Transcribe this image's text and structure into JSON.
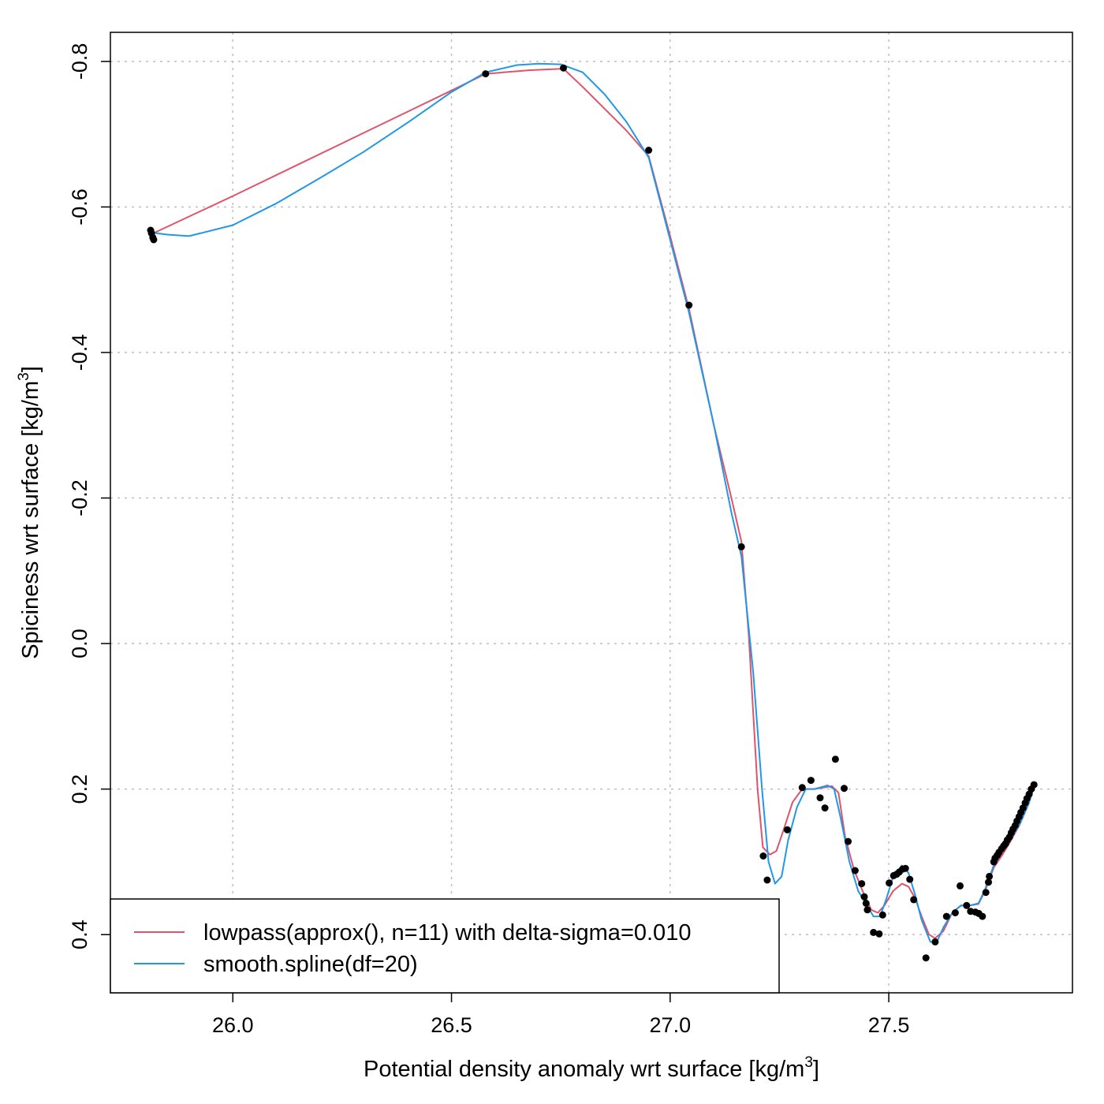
{
  "chart_data": {
    "type": "scatter",
    "xlabel": {
      "prefix": "Potential density anomaly wrt surface [kg/m",
      "sup": "3",
      "suffix": "]"
    },
    "ylabel": {
      "prefix": "Spiciness wrt surface [kg/m",
      "sup": "3",
      "suffix": "]"
    },
    "xlim": [
      25.72,
      27.92
    ],
    "ylim": [
      0.48,
      -0.84
    ],
    "y_reversed": true,
    "grid": true,
    "x_ticks": [
      {
        "value": 26.0,
        "label": "26.0"
      },
      {
        "value": 26.5,
        "label": "26.5"
      },
      {
        "value": 27.0,
        "label": "27.0"
      },
      {
        "value": 27.5,
        "label": "27.5"
      }
    ],
    "y_ticks": [
      {
        "value": -0.8,
        "label": "-0.8"
      },
      {
        "value": -0.6,
        "label": "-0.6"
      },
      {
        "value": -0.4,
        "label": "-0.4"
      },
      {
        "value": -0.2,
        "label": "-0.2"
      },
      {
        "value": 0.0,
        "label": "0.0"
      },
      {
        "value": 0.2,
        "label": "0.2"
      },
      {
        "value": 0.4,
        "label": "0.4"
      }
    ],
    "legend_position": "bottom-left",
    "colors": {
      "points": "#000000",
      "lowpass": "#DF536B",
      "spline": "#2297E6",
      "grid": "#BEBEBE"
    },
    "points": [
      [
        25.812,
        -0.568
      ],
      [
        25.814,
        -0.564
      ],
      [
        25.817,
        -0.558
      ],
      [
        25.819,
        -0.555
      ],
      [
        26.578,
        -0.783
      ],
      [
        26.756,
        -0.791
      ],
      [
        26.951,
        -0.678
      ],
      [
        27.043,
        -0.465
      ],
      [
        27.163,
        -0.133
      ],
      [
        27.213,
        0.292
      ],
      [
        27.222,
        0.325
      ],
      [
        27.268,
        0.256
      ],
      [
        27.302,
        0.198
      ],
      [
        27.322,
        0.188
      ],
      [
        27.343,
        0.212
      ],
      [
        27.354,
        0.226
      ],
      [
        27.378,
        0.159
      ],
      [
        27.398,
        0.199
      ],
      [
        27.407,
        0.272
      ],
      [
        27.423,
        0.312
      ],
      [
        27.438,
        0.33
      ],
      [
        27.444,
        0.348
      ],
      [
        27.448,
        0.357
      ],
      [
        27.451,
        0.366
      ],
      [
        27.465,
        0.397
      ],
      [
        27.478,
        0.399
      ],
      [
        27.486,
        0.373
      ],
      [
        27.501,
        0.329
      ],
      [
        27.511,
        0.319
      ],
      [
        27.518,
        0.317
      ],
      [
        27.524,
        0.314
      ],
      [
        27.532,
        0.31
      ],
      [
        27.538,
        0.309
      ],
      [
        27.548,
        0.324
      ],
      [
        27.557,
        0.352
      ],
      [
        27.585,
        0.432
      ],
      [
        27.606,
        0.41
      ],
      [
        27.632,
        0.375
      ],
      [
        27.652,
        0.37
      ],
      [
        27.663,
        0.333
      ],
      [
        27.678,
        0.36
      ],
      [
        27.687,
        0.368
      ],
      [
        27.698,
        0.369
      ],
      [
        27.706,
        0.371
      ],
      [
        27.714,
        0.375
      ],
      [
        27.722,
        0.342
      ],
      [
        27.728,
        0.328
      ],
      [
        27.73,
        0.32
      ],
      [
        27.74,
        0.3
      ],
      [
        27.743,
        0.295
      ],
      [
        27.748,
        0.291
      ],
      [
        27.752,
        0.287
      ],
      [
        27.758,
        0.282
      ],
      [
        27.763,
        0.278
      ],
      [
        27.767,
        0.275
      ],
      [
        27.771,
        0.27
      ],
      [
        27.776,
        0.266
      ],
      [
        27.78,
        0.26
      ],
      [
        27.784,
        0.255
      ],
      [
        27.789,
        0.25
      ],
      [
        27.793,
        0.244
      ],
      [
        27.798,
        0.238
      ],
      [
        27.802,
        0.232
      ],
      [
        27.807,
        0.226
      ],
      [
        27.812,
        0.219
      ],
      [
        27.816,
        0.213
      ],
      [
        27.821,
        0.207
      ],
      [
        27.826,
        0.2
      ],
      [
        27.832,
        0.194
      ]
    ],
    "series": [
      {
        "name": "lowpass(approx(), n=11) with delta-sigma=0.010",
        "color": "#DF536B",
        "x": [
          25.815,
          26.0,
          26.5,
          26.578,
          26.68,
          26.756,
          26.8,
          26.9,
          26.951,
          27.0,
          27.043,
          27.1,
          27.14,
          27.163,
          27.18,
          27.2,
          27.212,
          27.228,
          27.243,
          27.26,
          27.28,
          27.302,
          27.33,
          27.35,
          27.37,
          27.385,
          27.4,
          27.42,
          27.44,
          27.46,
          27.475,
          27.49,
          27.51,
          27.53,
          27.545,
          27.56,
          27.575,
          27.592,
          27.606,
          27.625,
          27.645,
          27.665,
          27.685,
          27.705,
          27.72,
          27.74,
          27.76,
          27.78,
          27.8,
          27.82,
          27.832
        ],
        "y": [
          -0.563,
          -0.615,
          -0.76,
          -0.783,
          -0.788,
          -0.79,
          -0.765,
          -0.705,
          -0.67,
          -0.56,
          -0.46,
          -0.3,
          -0.2,
          -0.14,
          -0.01,
          0.2,
          0.28,
          0.29,
          0.285,
          0.255,
          0.218,
          0.2,
          0.2,
          0.198,
          0.196,
          0.205,
          0.265,
          0.31,
          0.34,
          0.366,
          0.37,
          0.36,
          0.34,
          0.33,
          0.334,
          0.35,
          0.375,
          0.4,
          0.405,
          0.395,
          0.37,
          0.36,
          0.36,
          0.358,
          0.34,
          0.308,
          0.29,
          0.27,
          0.248,
          0.22,
          0.196
        ]
      },
      {
        "name": "smooth.spline(df=20)",
        "color": "#2297E6",
        "x": [
          25.812,
          25.85,
          25.9,
          26.0,
          26.1,
          26.2,
          26.3,
          26.4,
          26.5,
          26.578,
          26.65,
          26.7,
          26.75,
          26.8,
          26.85,
          26.9,
          26.951,
          27.0,
          27.043,
          27.1,
          27.14,
          27.163,
          27.19,
          27.21,
          27.225,
          27.24,
          27.255,
          27.27,
          27.29,
          27.31,
          27.33,
          27.36,
          27.375,
          27.39,
          27.41,
          27.43,
          27.45,
          27.465,
          27.48,
          27.495,
          27.51,
          27.53,
          27.545,
          27.56,
          27.575,
          27.595,
          27.61,
          27.625,
          27.645,
          27.665,
          27.685,
          27.705,
          27.72,
          27.74,
          27.76,
          27.78,
          27.8,
          27.82,
          27.832
        ],
        "y": [
          -0.565,
          -0.562,
          -0.56,
          -0.575,
          -0.605,
          -0.64,
          -0.676,
          -0.716,
          -0.758,
          -0.785,
          -0.795,
          -0.797,
          -0.796,
          -0.785,
          -0.755,
          -0.717,
          -0.668,
          -0.555,
          -0.455,
          -0.3,
          -0.18,
          -0.12,
          0.04,
          0.2,
          0.3,
          0.33,
          0.32,
          0.27,
          0.225,
          0.2,
          0.2,
          0.195,
          0.2,
          0.24,
          0.3,
          0.34,
          0.36,
          0.375,
          0.375,
          0.35,
          0.32,
          0.305,
          0.315,
          0.345,
          0.38,
          0.41,
          0.41,
          0.39,
          0.37,
          0.36,
          0.36,
          0.357,
          0.338,
          0.305,
          0.286,
          0.268,
          0.247,
          0.22,
          0.197
        ]
      }
    ]
  }
}
